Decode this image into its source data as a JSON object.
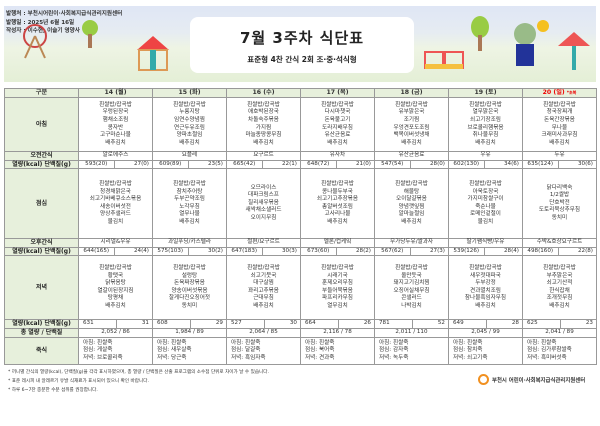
{
  "header": {
    "publisher": "발행처 : 부천시어린이·사회복지급식관리지원센터",
    "date": "발행일 : 2025년 6월 16일",
    "author": "작성자 : 이수현, 이슬기 영양사",
    "title": "7월 3주차 식단표",
    "subtitle": "표준형 4찬 간식 2회 조·중·석식형"
  },
  "labels": {
    "category": "구분",
    "breakfast": "아침",
    "am_snack": "오전간식",
    "energy": "열량(kcal)",
    "protein": "단백질(g)",
    "lunch": "점심",
    "pm_snack": "오후간식",
    "dinner": "저녁",
    "total": "총 열량 / 단백질",
    "porridge": "죽식"
  },
  "days": [
    {
      "day": "14 (월)",
      "breakfast": [
        "흰쌀밥/잡곡밥",
        "우렁된장국",
        "햄채소조림",
        "콩자반",
        "고구마순나물",
        "배추김치"
      ],
      "am_snack": "알로에주스",
      "b_kcal": "593(20)",
      "b_prot": "27(0)",
      "lunch": [
        "흰쌀밥/잡곡밥",
        "청경채맑은국",
        "쇠고기바베큐소스볶음",
        "새송이버섯전",
        "양상추샐러드",
        "물김치"
      ],
      "pm_snack": "시리얼&우유",
      "l_kcal": "644(165)",
      "l_prot": "24(4)",
      "dinner": [
        "흰쌀밥/잡곡밥",
        "황탯국",
        "닭볶음탕",
        "열갈이된장지짐",
        "탕평채",
        "배추김치"
      ],
      "d_kcal": "631",
      "d_prot": "31",
      "total": "2,052  /  86",
      "porridge": [
        "아침: 흰쌀죽",
        "점심: 게살죽",
        "저녁: 브로콜리죽"
      ]
    },
    {
      "day": "15 (화)",
      "breakfast": [
        "흰쌀밥/잡곡밥",
        "누룽지탕",
        "임연수양념찜",
        "연근두유조림",
        "양파초절임",
        "배추김치"
      ],
      "am_snack": "요플레",
      "b_kcal": "609(89)",
      "b_prot": "23(5)",
      "lunch": [
        "흰쌀밥/잡곡밥",
        "참치추어탕",
        "두부곤약조림",
        "노각무침",
        "열무나물",
        "배추김치"
      ],
      "pm_snack": "과일푸딩/카스텔라",
      "l_kcal": "575(103)",
      "l_prot": "30(2)",
      "dinner": [
        "흰쌀밥/잡곡밥",
        "설렁탕",
        "돈육짜장볶음",
        "양송이버섯볶음",
        "잘게다진오징어젓",
        "동치미"
      ],
      "d_kcal": "608",
      "d_prot": "29",
      "total": "1,984  /  89",
      "porridge": [
        "아침: 흰쌀죽",
        "점심: 새우살죽",
        "저녁: 당근죽"
      ]
    },
    {
      "day": "16 (수)",
      "breakfast": [
        "흰쌀밥/잡곡밥",
        "애호박된장국",
        "차돌숙주볶음",
        "가지찜",
        "마늘종땅콩무침",
        "배추김치"
      ],
      "am_snack": "요구르트",
      "b_kcal": "665(42)",
      "b_prot": "22(1)",
      "lunch": [
        "오므라이스",
        "대파크림스프",
        "칠리새우볶음",
        "새싹채소샐러드",
        "오이지무침"
      ],
      "pm_snack": "절편/요구르트",
      "l_kcal": "647(183)",
      "l_prot": "30(3)",
      "dinner": [
        "흰쌀밥/잡곡밥",
        "쇠고기뭇국",
        "대구살찜",
        "꽈리고추볶음",
        "근대무침",
        "배추김치"
      ],
      "d_kcal": "527",
      "d_prot": "30",
      "total": "2,064  /  85",
      "porridge": [
        "아침: 흰쌀죽",
        "점심: 달걀죽",
        "저녁: 흑임자죽"
      ]
    },
    {
      "day": "17 (목)",
      "breakfast": [
        "흰쌀밥/잡곡밥",
        "다시마챗국",
        "돈육불고기",
        "도라지배무침",
        "유산균음료",
        "배추김치"
      ],
      "am_snack": "유자차",
      "b_kcal": "648(72)",
      "b_prot": "21(0)",
      "lunch": [
        "흰쌀밥/잡곡밥",
        "콩나물두부국",
        "쇠고기고추장볶음",
        "총알버섯조림",
        "고사리나물",
        "배추김치"
      ],
      "pm_snack": "멜론/컵케잌",
      "l_kcal": "673(60)",
      "l_prot": "28(2)",
      "dinner": [
        "흰쌀밥/잡곡밥",
        "시래기국",
        "훈제오리무침",
        "부들어묵볶음",
        "파프리카무침",
        "열무김치"
      ],
      "d_kcal": "664",
      "d_prot": "26",
      "total": "2,116  /  78",
      "porridge": [
        "아침: 흰쌀죽",
        "점심: 북어죽",
        "저녁: 견과죽"
      ]
    },
    {
      "day": "18 (금)",
      "breakfast": [
        "흰쌀밥/잡곡밥",
        "유부맑은국",
        "조기찜",
        "우엉견포도조림",
        "백목이버섯냉채",
        "배추김치"
      ],
      "am_snack": "유산균음료",
      "b_kcal": "547(54)",
      "b_prot": "28(0)",
      "lunch": [
        "흰쌀밥/잡곡밥",
        "해물탕",
        "오이달걀볶음",
        "양념깻잎찜",
        "알마늘절임",
        "배추김치"
      ],
      "pm_snack": "무가당두유/쌀과자",
      "l_kcal": "567(62)",
      "l_prot": "27(3)",
      "dinner": [
        "흰쌀밥/잡곡밥",
        "올만둣국",
        "돼지고기김치찜",
        "오징어실채무침",
        "콘샐러드",
        "나박김치"
      ],
      "d_kcal": "781",
      "d_prot": "52",
      "total": "2,011  /  110",
      "porridge": [
        "아침: 흰쌀죽",
        "점심: 감자죽",
        "저녁: 녹두죽"
      ]
    },
    {
      "day": "19 (토)",
      "breakfast": [
        "흰쌀밥/잡곡밥",
        "열무맑은국",
        "쇠고기장조림",
        "브로콜리햄볶음",
        "취나물무침",
        "배추김치"
      ],
      "am_snack": "우유",
      "b_kcal": "602(130)",
      "b_prot": "34(6)",
      "lunch": [
        "흰쌀밥/잡곡밥",
        "아욱토장국",
        "가지미참쌀구이",
        "죽순나물",
        "로메인겉절이",
        "물김치"
      ],
      "pm_snack": "딸기쨈식빵/우유",
      "l_kcal": "539(126)",
      "l_prot": "28(4)",
      "dinner": [
        "흰쌀밥/잡곡밥",
        "새우젓대파국",
        "두부강정",
        "견과멸치조림",
        "참나물흑임자무침",
        "배추김치"
      ],
      "d_kcal": "649",
      "d_prot": "28",
      "total": "2,045  /  99",
      "porridge": [
        "아침: 흰쌀죽",
        "점심: 참치죽",
        "저녁: 쇠고기죽"
      ]
    },
    {
      "day": "20 (일)",
      "day_note": "*초복",
      "breakfast": [
        "흰쌀밥/잡곡밥",
        "청국장찌개",
        "돈육간장볶음",
        "무나물",
        "크래미사과무침",
        "배추김치"
      ],
      "am_snack": "두유",
      "b_kcal": "635(124)",
      "b_prot": "30(6)",
      "lunch": [
        "닭다리백숙",
        "1/2쌀밥",
        "단호박전",
        "도토리묵상추무침",
        "동치미"
      ],
      "pm_snack": "수박&호상요구르트",
      "l_kcal": "498(160)",
      "l_prot": "22(8)",
      "dinner": [
        "흰쌀밥/잡곡밥",
        "부추맑은국",
        "쇠고기산적",
        "한식잡채",
        "조개젓무침",
        "배추김치"
      ],
      "d_kcal": "625",
      "d_prot": "23",
      "total": "2,041  /  89",
      "porridge": [
        "아침: 흰쌀죽",
        "점심: 김가루참쌀죽",
        "저녁: 흑미버섯죽"
      ]
    }
  ],
  "notes": [
    "* 끼니별 간식의 열량(kcal), 단백질(g)을 각각 표시하였으며, 총 열량 / 단백질은 산출 프로그램의 소수점 단위로 차이가 날 수 있습니다.",
    "* 표준 레시피 내 알레르기 유발 식재료가 표시되어 있으니 확인 바랍니다.",
    "* 하루 6~7잔 충분한 수분 섭취를 권장합니다."
  ],
  "logo": "부천시 어린이·사회복지급식관리지원센터",
  "colors": {
    "label_bg": "#e7f0dc",
    "sunday": "#e00000",
    "logo": "#f19020"
  }
}
